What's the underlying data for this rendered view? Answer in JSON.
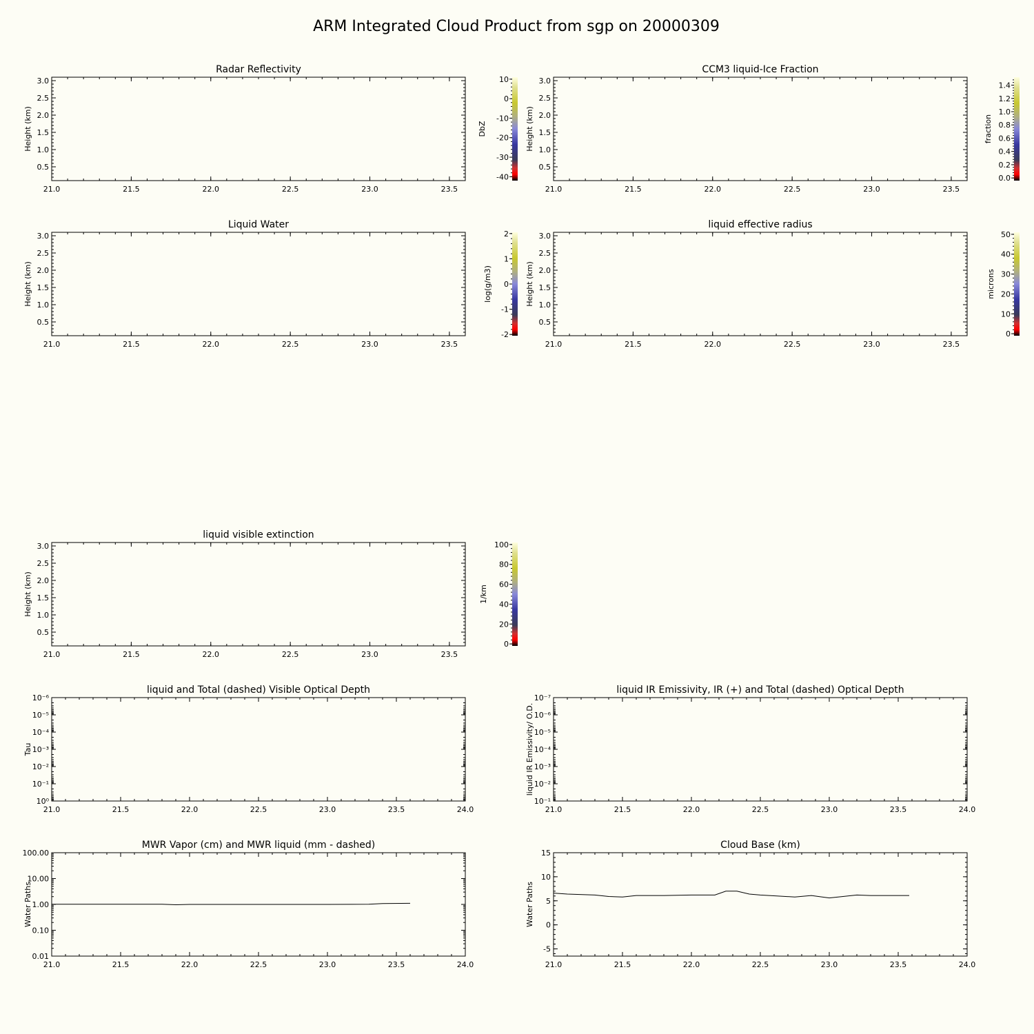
{
  "figure": {
    "title": "ARM Integrated Cloud Product from sgp on 20000309"
  },
  "chart_data": [
    {
      "id": "radar",
      "type": "heatmap",
      "title": "Radar Reflectivity",
      "ylabel": "Height (km)",
      "xlim": [
        21.0,
        23.6
      ],
      "ylim": [
        0.1,
        3.1
      ],
      "xticks": [
        "21.0",
        "21.5",
        "22.0",
        "22.5",
        "23.0",
        "23.5"
      ],
      "xtick_values": [
        21.0,
        21.5,
        22.0,
        22.5,
        23.0,
        23.5
      ],
      "yticks": [
        "0.5",
        "1.0",
        "1.5",
        "2.0",
        "2.5",
        "3.0"
      ],
      "ytick_values": [
        0.5,
        1.0,
        1.5,
        2.0,
        2.5,
        3.0
      ],
      "colorbar": {
        "label": "DbZ",
        "range": [
          -42,
          11
        ],
        "ticks": [
          "-40",
          "-30",
          "-20",
          "-10",
          "0",
          "10"
        ],
        "tick_values": [
          -40,
          -30,
          -20,
          -10,
          0,
          10
        ]
      },
      "values": []
    },
    {
      "id": "ccm3",
      "type": "heatmap",
      "title": "CCM3 liquid-Ice Fraction",
      "ylabel": "Height (km)",
      "xlim": [
        21.0,
        23.6
      ],
      "ylim": [
        0.1,
        3.1
      ],
      "xticks": [
        "21.0",
        "21.5",
        "22.0",
        "22.5",
        "23.0",
        "23.5"
      ],
      "xtick_values": [
        21.0,
        21.5,
        22.0,
        22.5,
        23.0,
        23.5
      ],
      "yticks": [
        "0.5",
        "1.0",
        "1.5",
        "2.0",
        "2.5",
        "3.0"
      ],
      "ytick_values": [
        0.5,
        1.0,
        1.5,
        2.0,
        2.5,
        3.0
      ],
      "colorbar": {
        "label": "fraction",
        "range": [
          -0.04,
          1.52
        ],
        "ticks": [
          "0.0",
          "0.2",
          "0.4",
          "0.6",
          "0.8",
          "1.0",
          "1.2",
          "1.4"
        ],
        "tick_values": [
          0.0,
          0.2,
          0.4,
          0.6,
          0.8,
          1.0,
          1.2,
          1.4
        ]
      },
      "values": []
    },
    {
      "id": "lwc",
      "type": "heatmap",
      "title": "Liquid Water",
      "ylabel": "Height (km)",
      "xlim": [
        21.0,
        23.6
      ],
      "ylim": [
        0.1,
        3.1
      ],
      "xticks": [
        "21.0",
        "21.5",
        "22.0",
        "22.5",
        "23.0",
        "23.5"
      ],
      "xtick_values": [
        21.0,
        21.5,
        22.0,
        22.5,
        23.0,
        23.5
      ],
      "yticks": [
        "0.5",
        "1.0",
        "1.5",
        "2.0",
        "2.5",
        "3.0"
      ],
      "ytick_values": [
        0.5,
        1.0,
        1.5,
        2.0,
        2.5,
        3.0
      ],
      "colorbar": {
        "label": "log(g/m3)",
        "range": [
          -2.05,
          2.05
        ],
        "ticks": [
          "-2",
          "-1",
          "0",
          "1",
          "2"
        ],
        "tick_values": [
          -2,
          -1,
          0,
          1,
          2
        ]
      },
      "values": []
    },
    {
      "id": "reff",
      "type": "heatmap",
      "title": "liquid effective radius",
      "ylabel": "Height (km)",
      "xlim": [
        21.0,
        23.6
      ],
      "ylim": [
        0.1,
        3.1
      ],
      "xticks": [
        "21.0",
        "21.5",
        "22.0",
        "22.5",
        "23.0",
        "23.5"
      ],
      "xtick_values": [
        21.0,
        21.5,
        22.0,
        22.5,
        23.0,
        23.5
      ],
      "yticks": [
        "0.5",
        "1.0",
        "1.5",
        "2.0",
        "2.5",
        "3.0"
      ],
      "ytick_values": [
        0.5,
        1.0,
        1.5,
        2.0,
        2.5,
        3.0
      ],
      "colorbar": {
        "label": "microns",
        "range": [
          -1,
          51
        ],
        "ticks": [
          "0",
          "10",
          "20",
          "30",
          "40",
          "50"
        ],
        "tick_values": [
          0,
          10,
          20,
          30,
          40,
          50
        ]
      },
      "values": []
    },
    {
      "id": "ext",
      "type": "heatmap",
      "title": "liquid visible extinction",
      "ylabel": "Height (km)",
      "xlim": [
        21.0,
        23.6
      ],
      "ylim": [
        0.1,
        3.1
      ],
      "xticks": [
        "21.0",
        "21.5",
        "22.0",
        "22.5",
        "23.0",
        "23.5"
      ],
      "xtick_values": [
        21.0,
        21.5,
        22.0,
        22.5,
        23.0,
        23.5
      ],
      "yticks": [
        "0.5",
        "1.0",
        "1.5",
        "2.0",
        "2.5",
        "3.0"
      ],
      "ytick_values": [
        0.5,
        1.0,
        1.5,
        2.0,
        2.5,
        3.0
      ],
      "colorbar": {
        "label": "1/km",
        "range": [
          -2,
          102
        ],
        "ticks": [
          "0",
          "20",
          "40",
          "60",
          "80",
          "100"
        ],
        "tick_values": [
          0,
          20,
          40,
          60,
          80,
          100
        ]
      },
      "values": []
    },
    {
      "id": "tau",
      "type": "line",
      "title": "liquid and Total (dashed) Visible Optical Depth",
      "ylabel": "Tau",
      "xlim": [
        21.0,
        24.0
      ],
      "ylim": [
        1e-06,
        1
      ],
      "yscale": "log",
      "y_reversed": true,
      "xticks": [
        "21.0",
        "21.5",
        "22.0",
        "22.5",
        "23.0",
        "23.5",
        "24.0"
      ],
      "xtick_values": [
        21.0,
        21.5,
        22.0,
        22.5,
        23.0,
        23.5,
        24.0
      ],
      "yticks": [
        "10⁻⁶",
        "10⁻⁵",
        "10⁻⁴",
        "10⁻³",
        "10⁻²",
        "10⁻¹",
        "10⁰"
      ],
      "ytick_values": [
        1e-06,
        1e-05,
        0.0001,
        0.001,
        0.01,
        0.1,
        1
      ],
      "series": []
    },
    {
      "id": "emis",
      "type": "line",
      "title": "liquid IR Emissivity, IR (+) and Total (dashed) Optical Depth",
      "ylabel": "liquid IR Emissivity/ O.D.",
      "xlim": [
        21.0,
        24.0
      ],
      "ylim": [
        1e-07,
        0.1
      ],
      "yscale": "log",
      "y_reversed": true,
      "xticks": [
        "21.0",
        "21.5",
        "22.0",
        "22.5",
        "23.0",
        "23.5",
        "24.0"
      ],
      "xtick_values": [
        21.0,
        21.5,
        22.0,
        22.5,
        23.0,
        23.5,
        24.0
      ],
      "yticks": [
        "10⁻⁷",
        "10⁻⁶",
        "10⁻⁵",
        "10⁻⁴",
        "10⁻³",
        "10⁻²",
        "10⁻¹"
      ],
      "ytick_values": [
        1e-07,
        1e-06,
        1e-05,
        0.0001,
        0.001,
        0.01,
        0.1
      ],
      "series": []
    },
    {
      "id": "mwr",
      "type": "line",
      "title": "MWR Vapor (cm) and MWR liquid (mm - dashed)",
      "ylabel": "Water Paths",
      "xlim": [
        21.0,
        24.0
      ],
      "ylim": [
        0.01,
        100
      ],
      "yscale": "log",
      "xticks": [
        "21.0",
        "21.5",
        "22.0",
        "22.5",
        "23.0",
        "23.5",
        "24.0"
      ],
      "xtick_values": [
        21.0,
        21.5,
        22.0,
        22.5,
        23.0,
        23.5,
        24.0
      ],
      "yticks": [
        "0.01",
        "0.10",
        "1.00",
        "10.00",
        "100.00"
      ],
      "ytick_values": [
        0.01,
        0.1,
        1,
        10,
        100
      ],
      "series": [
        {
          "x": [
            21.0,
            21.4,
            21.8,
            21.9,
            22.0,
            22.5,
            23.0,
            23.3,
            23.4,
            23.6
          ],
          "y": [
            1.02,
            1.02,
            1.02,
            0.97,
            1.0,
            1.0,
            1.0,
            1.02,
            1.08,
            1.1
          ]
        }
      ]
    },
    {
      "id": "cbase",
      "type": "line",
      "title": "Cloud Base (km)",
      "ylabel": "Water Paths",
      "xlim": [
        21.0,
        24.0
      ],
      "ylim": [
        -6.5,
        15
      ],
      "xticks": [
        "21.0",
        "21.5",
        "22.0",
        "22.5",
        "23.0",
        "23.5",
        "24.0"
      ],
      "xtick_values": [
        21.0,
        21.5,
        22.0,
        22.5,
        23.0,
        23.5,
        24.0
      ],
      "yticks": [
        "-5",
        "0",
        "5",
        "10",
        "15"
      ],
      "ytick_values": [
        -5,
        0,
        5,
        10,
        15
      ],
      "series": [
        {
          "x": [
            21.0,
            21.1,
            21.3,
            21.4,
            21.5,
            21.6,
            21.8,
            22.0,
            22.17,
            22.25,
            22.33,
            22.42,
            22.5,
            22.75,
            22.87,
            23.0,
            23.1,
            23.2,
            23.3,
            23.5,
            23.58
          ],
          "y": [
            6.6,
            6.4,
            6.2,
            5.9,
            5.8,
            6.1,
            6.1,
            6.2,
            6.2,
            7.0,
            7.0,
            6.4,
            6.2,
            5.8,
            6.1,
            5.6,
            5.9,
            6.2,
            6.1,
            6.1,
            6.1
          ]
        }
      ]
    }
  ]
}
